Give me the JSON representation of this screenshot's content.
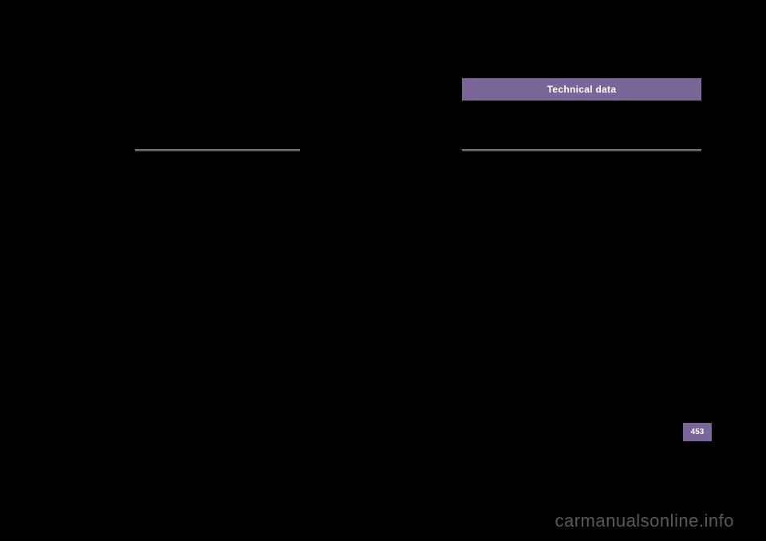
{
  "header": {
    "section_title": "Technical data",
    "tab_bg_color": "#7a6699",
    "tab_text_color": "#ffffff"
  },
  "page": {
    "number": "453",
    "page_tab_bg_color": "#7a6699",
    "page_tab_text_color": "#ffffff"
  },
  "watermark": {
    "text": "carmanualsonline.info",
    "color": "#5a5a5a"
  },
  "layout": {
    "background_color": "#000000",
    "divider_color_top": "#888888",
    "divider_color_bottom": "#333333"
  }
}
